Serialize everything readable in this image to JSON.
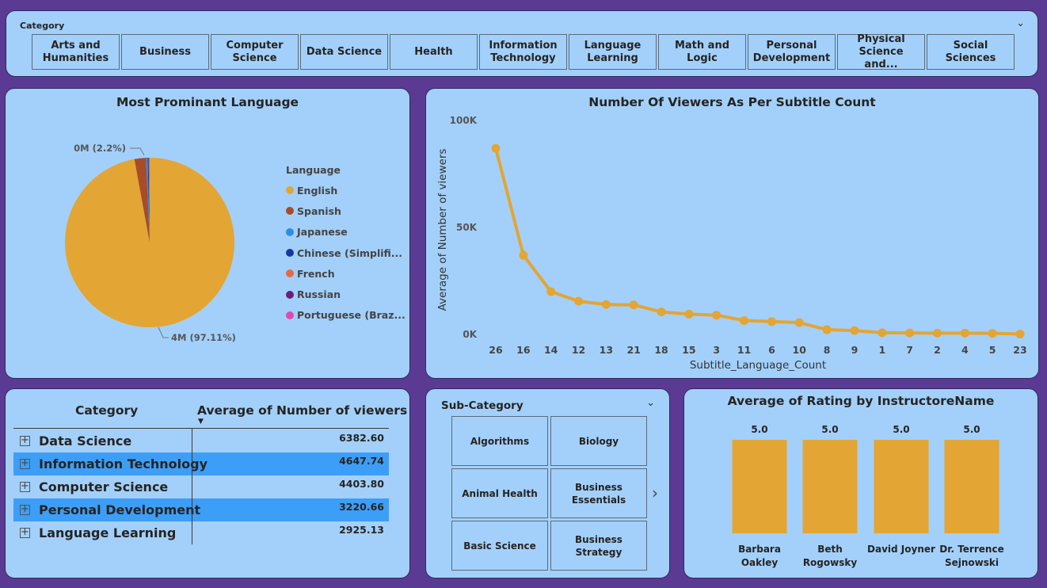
{
  "category_slicer": {
    "title": "Category",
    "options": [
      "Arts and Humanities",
      "Business",
      "Computer Science",
      "Data Science",
      "Health",
      "Information Technology",
      "Language Learning",
      "Math and Logic",
      "Personal Development",
      "Physical Science and...",
      "Social Sciences"
    ]
  },
  "colors": {
    "accent": "#E3A534",
    "panel": "#A3D0FA",
    "background": "#5B3A94",
    "highlight": "#3D9EF7"
  },
  "pie": {
    "title": "Most Prominant Language",
    "legend_title": "Language",
    "legend": [
      {
        "label": "English",
        "color": "#E3A534"
      },
      {
        "label": "Spanish",
        "color": "#A84C27"
      },
      {
        "label": "Japanese",
        "color": "#2D8DE6"
      },
      {
        "label": "Chinese (Simplifi...",
        "color": "#17399E"
      },
      {
        "label": "French",
        "color": "#E56A43"
      },
      {
        "label": "Russian",
        "color": "#6B1F7B"
      },
      {
        "label": "Portuguese (Braz...",
        "color": "#E04BB0"
      }
    ],
    "data_labels": {
      "spanish": "0M (2.2%)",
      "english": "4M (97.11%)"
    }
  },
  "line": {
    "title": "Number Of Viewers As Per Subtitle Count"
  },
  "table": {
    "headers": {
      "category": "Category",
      "value": "Average of Number of viewers"
    },
    "rows": [
      {
        "name": "Data Science",
        "value": "6382.60",
        "highlight": false
      },
      {
        "name": "Information Technology",
        "value": "4647.74",
        "highlight": true
      },
      {
        "name": "Computer Science",
        "value": "4403.80",
        "highlight": false
      },
      {
        "name": "Personal Development",
        "value": "3220.66",
        "highlight": true
      },
      {
        "name": "Language Learning",
        "value": "2925.13",
        "highlight": false
      }
    ]
  },
  "subcategory_slicer": {
    "title": "Sub-Category",
    "options": [
      "Algorithms",
      "Biology",
      "Animal Health",
      "Business Essentials",
      "Basic Science",
      "Business Strategy"
    ]
  },
  "bar": {
    "title": "Average of Rating by InstructoreName"
  },
  "chart_data": [
    {
      "type": "pie",
      "title": "Most Prominant Language",
      "legend_title": "Language",
      "legend_placement": "right",
      "categories": [
        "English",
        "Spanish",
        "Japanese",
        "Chinese (Simplified)",
        "French",
        "Russian",
        "Portuguese (Brazilian)"
      ],
      "values": [
        97.11,
        2.2,
        0.3,
        0.2,
        0.1,
        0.05,
        0.04
      ],
      "unit": "%"
    },
    {
      "type": "line",
      "title": "Number Of Viewers As Per Subtitle Count",
      "xlabel": "Subtitle_Language_Count",
      "ylabel": "Average of Number of viewers",
      "categories": [
        "26",
        "16",
        "14",
        "12",
        "13",
        "21",
        "18",
        "15",
        "3",
        "11",
        "6",
        "10",
        "8",
        "9",
        "1",
        "7",
        "2",
        "4",
        "5",
        "23"
      ],
      "values": [
        87000,
        37000,
        20000,
        15500,
        14000,
        13800,
        10500,
        9500,
        9000,
        6500,
        6000,
        5500,
        2200,
        1800,
        800,
        700,
        600,
        600,
        500,
        200
      ],
      "ylim": [
        0,
        100000
      ],
      "yticks": [
        {
          "value": 0,
          "label": "0K"
        },
        {
          "value": 50000,
          "label": "50K"
        },
        {
          "value": 100000,
          "label": "100K"
        }
      ],
      "grid": false
    },
    {
      "type": "bar",
      "title": "Average of Rating by InstructoreName",
      "categories": [
        "Barbara Oakley",
        "Beth Rogowsky",
        "David Joyner",
        "Dr. Terrence Sejnowski"
      ],
      "values": [
        5.0,
        5.0,
        5.0,
        5.0
      ],
      "data_labels": [
        "5.0",
        "5.0",
        "5.0",
        "5.0"
      ]
    }
  ]
}
